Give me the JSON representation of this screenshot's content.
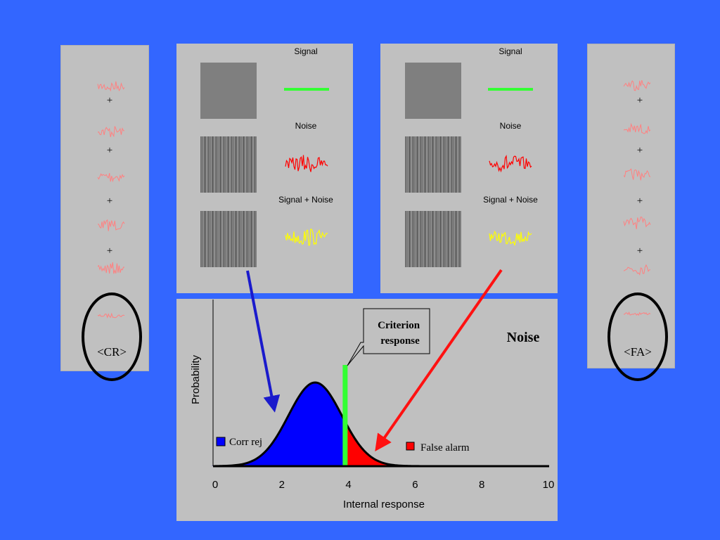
{
  "left_panel": {
    "label": "<CR>"
  },
  "right_panel": {
    "label": "<FA>"
  },
  "plus_sign": "+",
  "stimulus_panels": {
    "signal_label": "Signal",
    "noise_label": "Noise",
    "signal_noise_label": "Signal + Noise"
  },
  "colors": {
    "background": "#3366ff",
    "panel": "#c0c0c0",
    "signal": "#33ff33",
    "noise": "#ff0000",
    "signal_plus_noise": "#ffff00",
    "faint_trace": "#ff8080",
    "corr_rej_fill": "#0000ff",
    "false_alarm_fill": "#ff0000",
    "criterion": "#33ff33",
    "arrow_blue": "#1a1acc",
    "arrow_red": "#ff1111"
  },
  "chart_data": {
    "type": "area",
    "title": "Noise",
    "xlabel": "Internal response",
    "ylabel": "Probability",
    "xlim": [
      0,
      10
    ],
    "x_ticks": [
      "0",
      "2",
      "4",
      "6",
      "8",
      "10"
    ],
    "distribution": {
      "name": "Noise",
      "mean": 3,
      "sd": 0.8
    },
    "criterion": 3.9,
    "criterion_label": "Criterion response",
    "legend": [
      {
        "name": "Corr rej",
        "color": "#0000ff"
      },
      {
        "name": "False alarm",
        "color": "#ff0000"
      }
    ]
  }
}
